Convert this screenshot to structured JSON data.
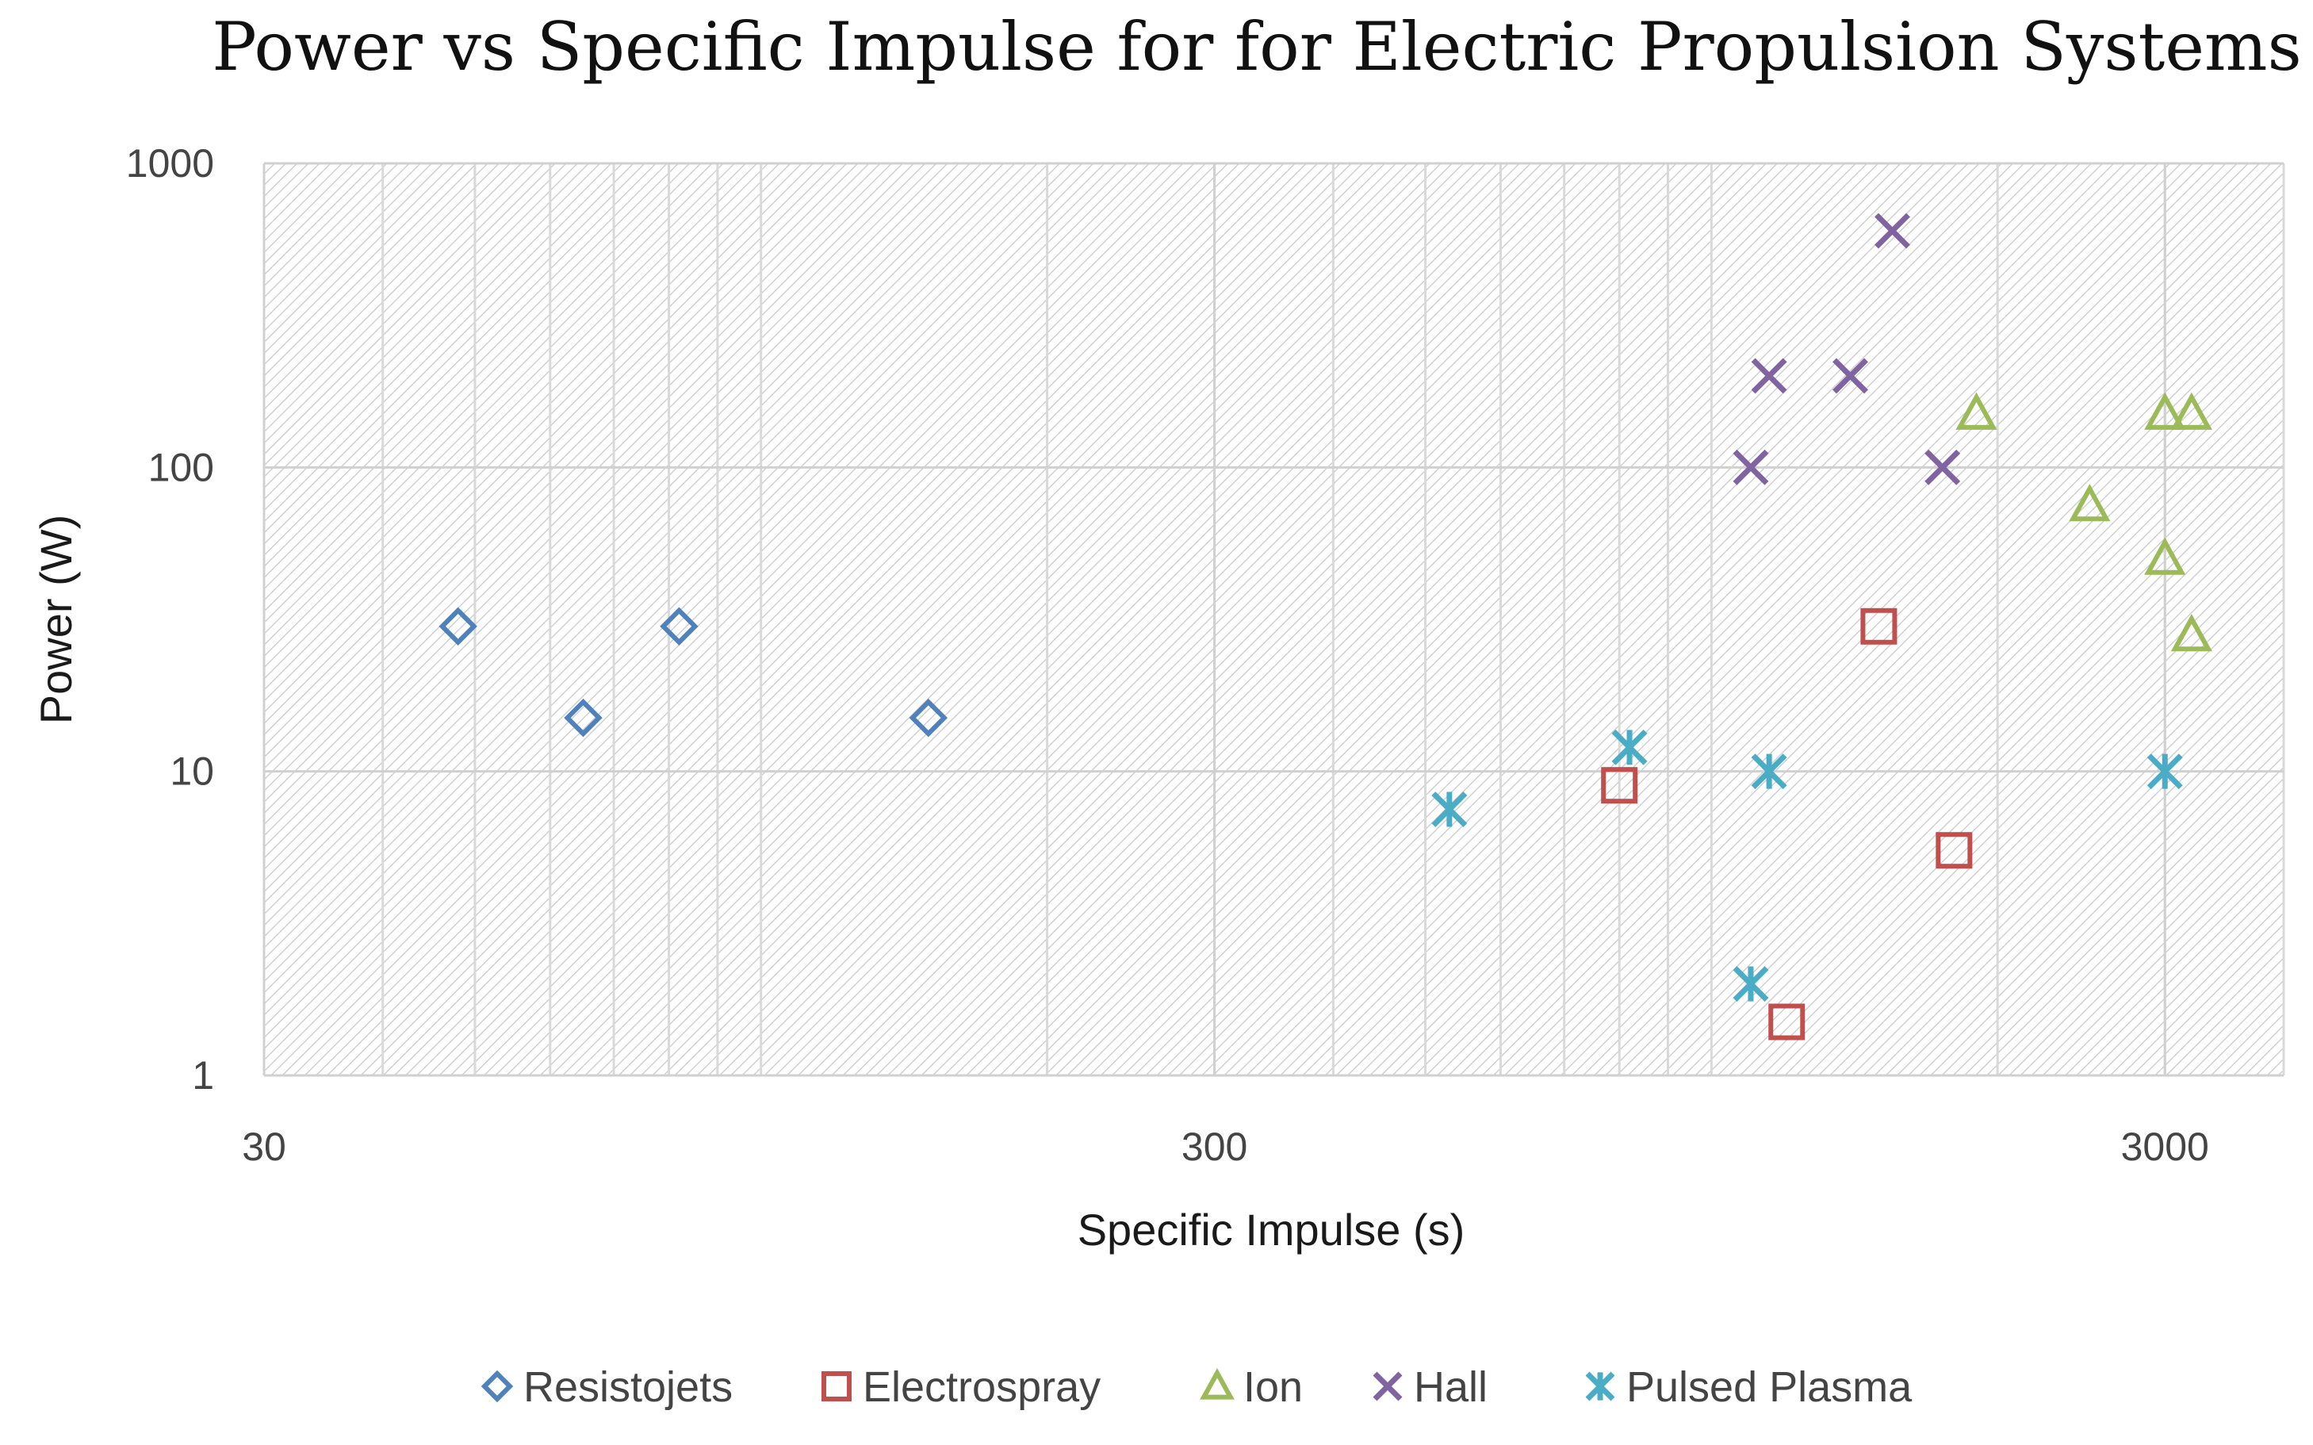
{
  "chart_data": {
    "type": "scatter",
    "title": "Power vs Specific Impulse for for Electric Propulsion Systems",
    "xlabel": "Specific Impulse (s)",
    "ylabel": "Power (W)",
    "xscale": "log",
    "yscale": "log",
    "xlim": [
      30,
      4000
    ],
    "ylim": [
      1,
      1000
    ],
    "xticks": [
      {
        "value": 30,
        "label": "30"
      },
      {
        "value": 300,
        "label": "300"
      },
      {
        "value": 3000,
        "label": "3000"
      }
    ],
    "yticks": [
      {
        "value": 1,
        "label": "1"
      },
      {
        "value": 10,
        "label": "10"
      },
      {
        "value": 100,
        "label": "100"
      },
      {
        "value": 1000,
        "label": "1000"
      }
    ],
    "grid": true,
    "legend_position": "bottom",
    "series": [
      {
        "name": "Resistojets",
        "marker": "diamond",
        "color": "#4f81bd",
        "points": [
          {
            "x": 48,
            "y": 30
          },
          {
            "x": 65,
            "y": 15
          },
          {
            "x": 82,
            "y": 30
          },
          {
            "x": 150,
            "y": 15
          }
        ]
      },
      {
        "name": "Electrospray",
        "marker": "square",
        "color": "#c0504d",
        "points": [
          {
            "x": 800,
            "y": 9
          },
          {
            "x": 1200,
            "y": 1.5
          },
          {
            "x": 1500,
            "y": 30
          },
          {
            "x": 1800,
            "y": 5.5
          }
        ]
      },
      {
        "name": "Ion",
        "marker": "triangle",
        "color": "#9bbb59",
        "points": [
          {
            "x": 1900,
            "y": 150
          },
          {
            "x": 2500,
            "y": 75
          },
          {
            "x": 3000,
            "y": 150
          },
          {
            "x": 3000,
            "y": 50
          },
          {
            "x": 3200,
            "y": 150
          },
          {
            "x": 3200,
            "y": 28
          }
        ]
      },
      {
        "name": "Hall",
        "marker": "x",
        "color": "#8064a2",
        "points": [
          {
            "x": 1100,
            "y": 100
          },
          {
            "x": 1150,
            "y": 200
          },
          {
            "x": 1400,
            "y": 200
          },
          {
            "x": 1550,
            "y": 600
          },
          {
            "x": 1750,
            "y": 100
          }
        ]
      },
      {
        "name": "Pulsed Plasma",
        "marker": "asterisk",
        "color": "#4bacc6",
        "points": [
          {
            "x": 530,
            "y": 7.5
          },
          {
            "x": 820,
            "y": 12
          },
          {
            "x": 1100,
            "y": 2
          },
          {
            "x": 1150,
            "y": 10
          },
          {
            "x": 3000,
            "y": 10
          }
        ]
      }
    ]
  }
}
